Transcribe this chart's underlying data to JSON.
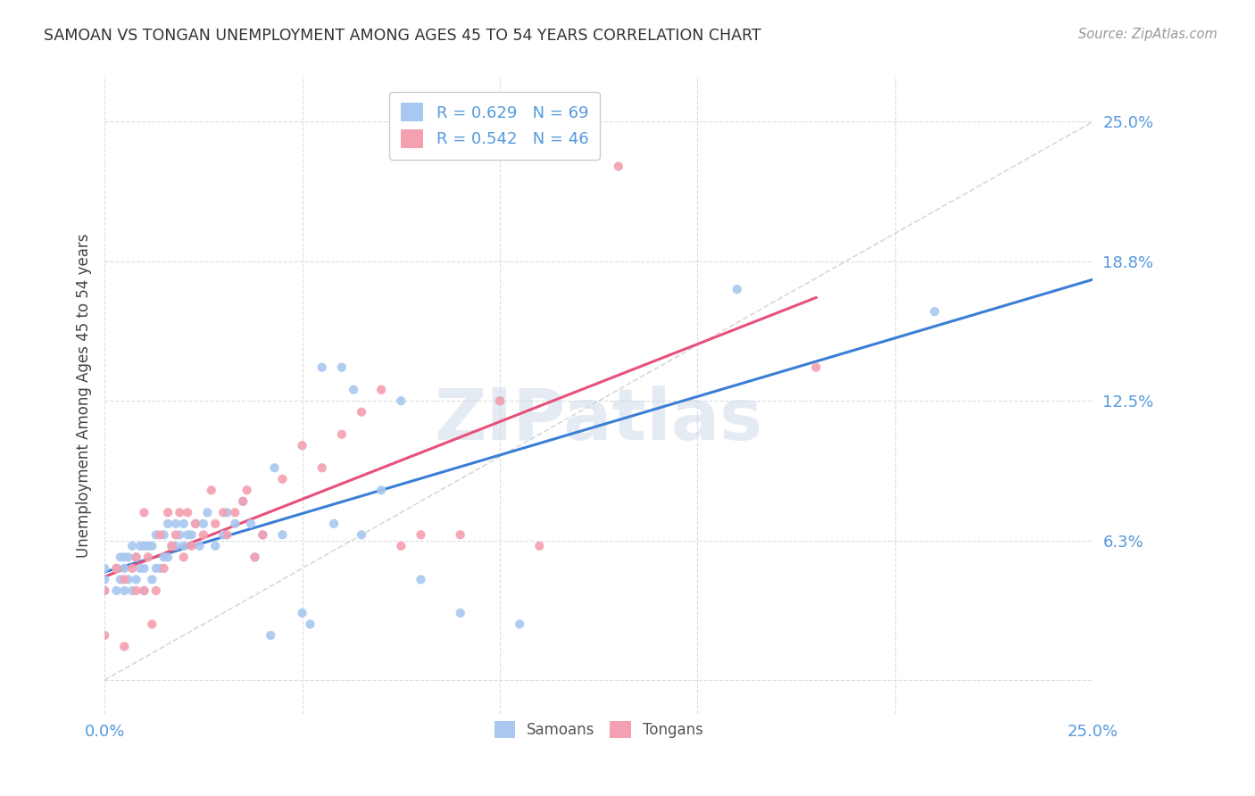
{
  "title": "SAMOAN VS TONGAN UNEMPLOYMENT AMONG AGES 45 TO 54 YEARS CORRELATION CHART",
  "source": "Source: ZipAtlas.com",
  "ylabel": "Unemployment Among Ages 45 to 54 years",
  "xmin": 0.0,
  "xmax": 0.25,
  "ymin": -0.015,
  "ymax": 0.27,
  "samoans_color": "#a8c8f0",
  "tongans_color": "#f4a0b0",
  "blue_line_color": "#3a7fd5",
  "pink_line_color": "#e8507a",
  "diagonal_color": "#c8c8c8",
  "R_samoans": 0.629,
  "N_samoans": 69,
  "R_tongans": 0.542,
  "N_tongans": 46,
  "background_color": "#ffffff",
  "grid_color": "#dddddd",
  "title_color": "#333333",
  "label_color": "#5599dd",
  "samoans_x": [
    0.0,
    0.0,
    0.0,
    0.003,
    0.003,
    0.004,
    0.004,
    0.005,
    0.005,
    0.005,
    0.006,
    0.006,
    0.007,
    0.007,
    0.008,
    0.008,
    0.009,
    0.009,
    0.01,
    0.01,
    0.01,
    0.011,
    0.012,
    0.012,
    0.013,
    0.013,
    0.014,
    0.015,
    0.015,
    0.016,
    0.016,
    0.017,
    0.018,
    0.018,
    0.019,
    0.02,
    0.02,
    0.021,
    0.022,
    0.023,
    0.024,
    0.025,
    0.026,
    0.028,
    0.03,
    0.031,
    0.033,
    0.035,
    0.037,
    0.038,
    0.04,
    0.042,
    0.043,
    0.045,
    0.05,
    0.052,
    0.055,
    0.058,
    0.06,
    0.063,
    0.065,
    0.07,
    0.075,
    0.08,
    0.09,
    0.1,
    0.105,
    0.16,
    0.21
  ],
  "samoans_y": [
    0.04,
    0.045,
    0.05,
    0.04,
    0.05,
    0.045,
    0.055,
    0.04,
    0.05,
    0.055,
    0.045,
    0.055,
    0.04,
    0.06,
    0.045,
    0.055,
    0.05,
    0.06,
    0.04,
    0.05,
    0.06,
    0.06,
    0.045,
    0.06,
    0.05,
    0.065,
    0.05,
    0.055,
    0.065,
    0.055,
    0.07,
    0.06,
    0.06,
    0.07,
    0.065,
    0.06,
    0.07,
    0.065,
    0.065,
    0.07,
    0.06,
    0.07,
    0.075,
    0.06,
    0.065,
    0.075,
    0.07,
    0.08,
    0.07,
    0.055,
    0.065,
    0.02,
    0.095,
    0.065,
    0.03,
    0.025,
    0.14,
    0.07,
    0.14,
    0.13,
    0.065,
    0.085,
    0.125,
    0.045,
    0.03,
    0.125,
    0.025,
    0.175,
    0.165
  ],
  "tongans_x": [
    0.0,
    0.0,
    0.003,
    0.005,
    0.005,
    0.007,
    0.008,
    0.008,
    0.01,
    0.01,
    0.011,
    0.012,
    0.013,
    0.014,
    0.015,
    0.016,
    0.017,
    0.018,
    0.019,
    0.02,
    0.021,
    0.022,
    0.023,
    0.025,
    0.027,
    0.028,
    0.03,
    0.031,
    0.033,
    0.035,
    0.036,
    0.038,
    0.04,
    0.045,
    0.05,
    0.055,
    0.06,
    0.065,
    0.07,
    0.075,
    0.08,
    0.09,
    0.1,
    0.11,
    0.13,
    0.18
  ],
  "tongans_y": [
    0.04,
    0.02,
    0.05,
    0.015,
    0.045,
    0.05,
    0.04,
    0.055,
    0.04,
    0.075,
    0.055,
    0.025,
    0.04,
    0.065,
    0.05,
    0.075,
    0.06,
    0.065,
    0.075,
    0.055,
    0.075,
    0.06,
    0.07,
    0.065,
    0.085,
    0.07,
    0.075,
    0.065,
    0.075,
    0.08,
    0.085,
    0.055,
    0.065,
    0.09,
    0.105,
    0.095,
    0.11,
    0.12,
    0.13,
    0.06,
    0.065,
    0.065,
    0.125,
    0.06,
    0.23,
    0.14
  ]
}
